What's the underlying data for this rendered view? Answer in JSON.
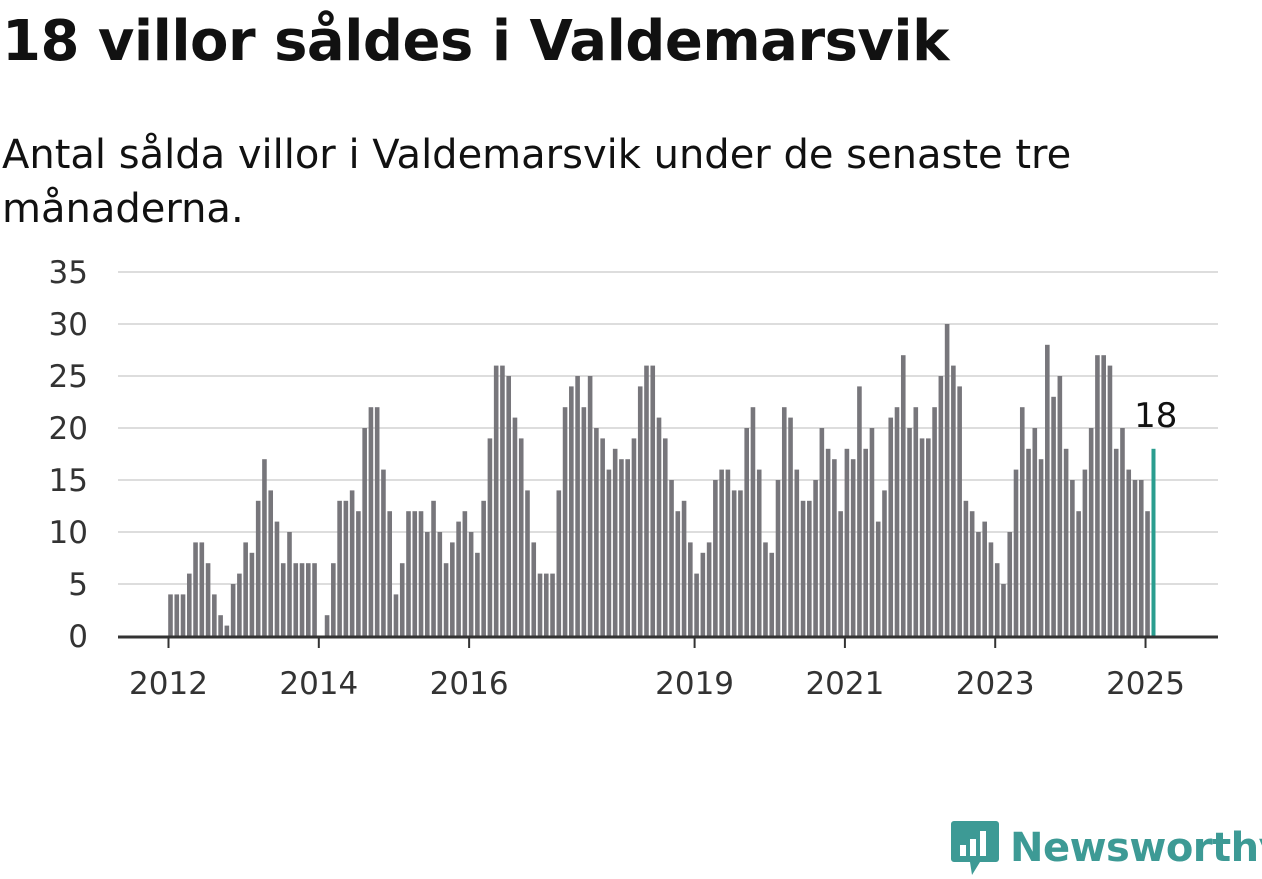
{
  "title": "18 villor såldes i Valdemarsvik",
  "subtitle": "Antal sålda villor i Valdemarsvik under de senaste tre månaderna.",
  "brand": {
    "name": "Newsworthy",
    "icon": "bar-chart-speech-bubble-icon",
    "color": "#3d9a95"
  },
  "colors": {
    "bar": "#77767b",
    "highlight": "#2a9d8f",
    "grid": "#dddddd",
    "axis": "#333333"
  },
  "chart_data": {
    "type": "bar",
    "title": "18 villor såldes i Valdemarsvik",
    "subtitle": "Antal sålda villor i Valdemarsvik under de senaste tre månaderna.",
    "xlabel": "",
    "ylabel": "",
    "ylim": [
      0,
      35
    ],
    "yticks": [
      0,
      5,
      10,
      15,
      20,
      25,
      30,
      35
    ],
    "grid": true,
    "x_start": "2012-01",
    "x_ticks": [
      {
        "label": "2012",
        "index": 0
      },
      {
        "label": "2014",
        "index": 24
      },
      {
        "label": "2016",
        "index": 48
      },
      {
        "label": "2019",
        "index": 84
      },
      {
        "label": "2021",
        "index": 108
      },
      {
        "label": "2023",
        "index": 132
      },
      {
        "label": "2025",
        "index": 156
      }
    ],
    "values": [
      4,
      4,
      4,
      6,
      9,
      9,
      7,
      4,
      2,
      1,
      5,
      6,
      9,
      8,
      13,
      17,
      14,
      11,
      7,
      10,
      7,
      7,
      7,
      7,
      null,
      2,
      7,
      13,
      13,
      14,
      12,
      20,
      22,
      22,
      16,
      12,
      4,
      7,
      12,
      12,
      12,
      10,
      13,
      10,
      7,
      9,
      11,
      12,
      10,
      8,
      13,
      19,
      26,
      26,
      25,
      21,
      19,
      14,
      9,
      6,
      6,
      6,
      14,
      22,
      24,
      25,
      22,
      25,
      20,
      19,
      16,
      18,
      17,
      17,
      19,
      24,
      26,
      26,
      21,
      19,
      15,
      12,
      13,
      9,
      6,
      8,
      9,
      15,
      16,
      16,
      14,
      14,
      20,
      22,
      16,
      9,
      8,
      15,
      22,
      21,
      16,
      13,
      13,
      15,
      20,
      18,
      17,
      12,
      18,
      17,
      24,
      18,
      20,
      11,
      14,
      21,
      22,
      27,
      20,
      22,
      19,
      19,
      22,
      25,
      30,
      26,
      24,
      13,
      12,
      10,
      11,
      9,
      7,
      5,
      10,
      16,
      22,
      18,
      20,
      17,
      28,
      23,
      25,
      18,
      15,
      12,
      16,
      20,
      27,
      27,
      26,
      18,
      20,
      16,
      15,
      15,
      12,
      18
    ],
    "highlight_last": true,
    "last_label": "18"
  }
}
